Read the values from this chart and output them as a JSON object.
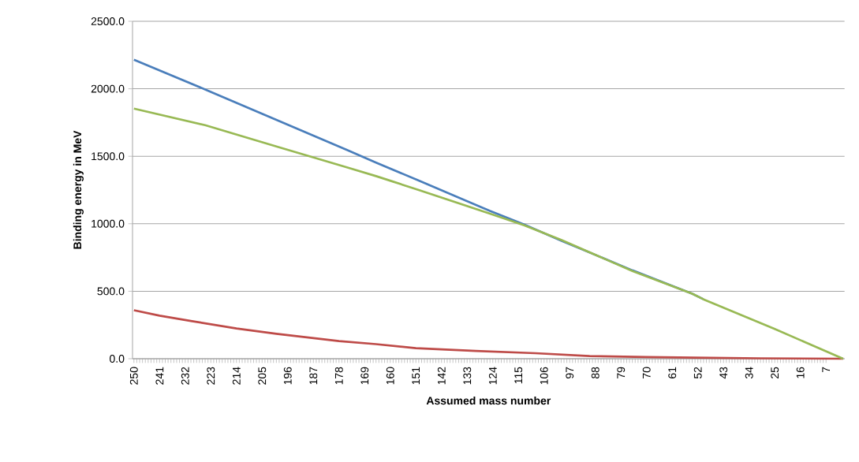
{
  "chart_data": {
    "type": "line",
    "xlabel": "Assumed mass number",
    "ylabel": "Binding energy in MeV",
    "xlim": [
      250.5,
      0.5
    ],
    "ylim": [
      0,
      2500
    ],
    "xticks": [
      250,
      241,
      232,
      223,
      214,
      205,
      196,
      187,
      178,
      169,
      160,
      151,
      142,
      133,
      124,
      115,
      106,
      97,
      88,
      79,
      70,
      61,
      52,
      43,
      34,
      25,
      16,
      7
    ],
    "yticks": [
      {
        "value": 0,
        "label": "0.0"
      },
      {
        "value": 500,
        "label": "500.0"
      },
      {
        "value": 1000,
        "label": "1000.0"
      },
      {
        "value": 1500,
        "label": "1500.0"
      },
      {
        "value": 2000,
        "label": "2000.0"
      },
      {
        "value": 2500,
        "label": "2500.0"
      }
    ],
    "grid": "y",
    "series": [
      {
        "color": "#4a7ebb",
        "x": [
          250,
          225,
          200,
          175,
          165,
          150,
          125,
          113,
          100,
          75,
          54,
          50
        ],
        "values": [
          2215,
          1995,
          1770,
          1545,
          1453,
          1320,
          1095,
          995,
          875,
          655,
          482,
          440
        ]
      },
      {
        "color": "#be4b48",
        "x": [
          250,
          241,
          230,
          214,
          200,
          178,
          165,
          151,
          130,
          109,
          90,
          70,
          53,
          30,
          1
        ],
        "values": [
          359,
          319,
          280,
          224,
          185,
          131,
          108,
          78,
          58,
          41,
          20,
          12,
          8,
          3,
          0
        ]
      },
      {
        "color": "#98b954",
        "x": [
          250,
          225,
          200,
          175,
          165,
          159,
          150,
          125,
          113,
          100,
          75,
          54,
          50,
          25,
          1
        ],
        "values": [
          1853,
          1730,
          1573,
          1416,
          1353,
          1312,
          1250,
          1075,
          988,
          880,
          650,
          482,
          440,
          220,
          0
        ]
      }
    ]
  }
}
